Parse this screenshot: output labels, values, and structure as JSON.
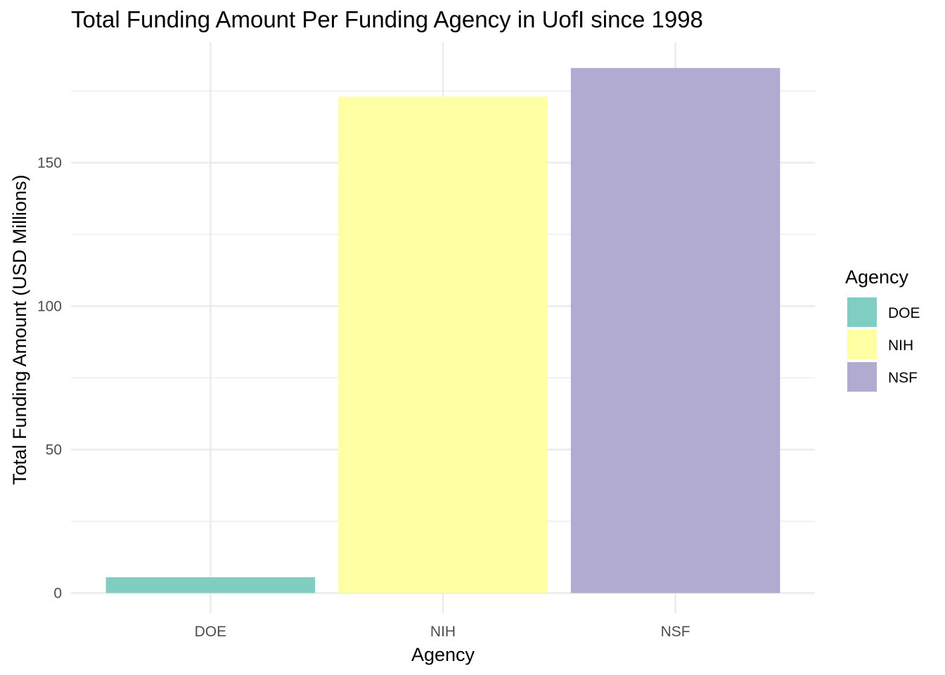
{
  "chart_data": {
    "type": "bar",
    "title": "Total Funding Amount Per Funding Agency in UofI since 1998",
    "xlabel": "Agency",
    "ylabel": "Total Funding Amount (USD Millions)",
    "categories": [
      "DOE",
      "NIH",
      "NSF"
    ],
    "values": [
      5.5,
      173,
      183
    ],
    "colors": [
      "#80CDC1",
      "#FFFFA3",
      "#B1AAD1"
    ],
    "ylim": [
      -7,
      192
    ],
    "yticks": [
      0,
      50,
      100,
      150
    ],
    "yminor": [
      25,
      75,
      125,
      175
    ],
    "grid": true,
    "legend": {
      "title": "Agency",
      "placement": "right",
      "entries": [
        "DOE",
        "NIH",
        "NSF"
      ]
    }
  }
}
